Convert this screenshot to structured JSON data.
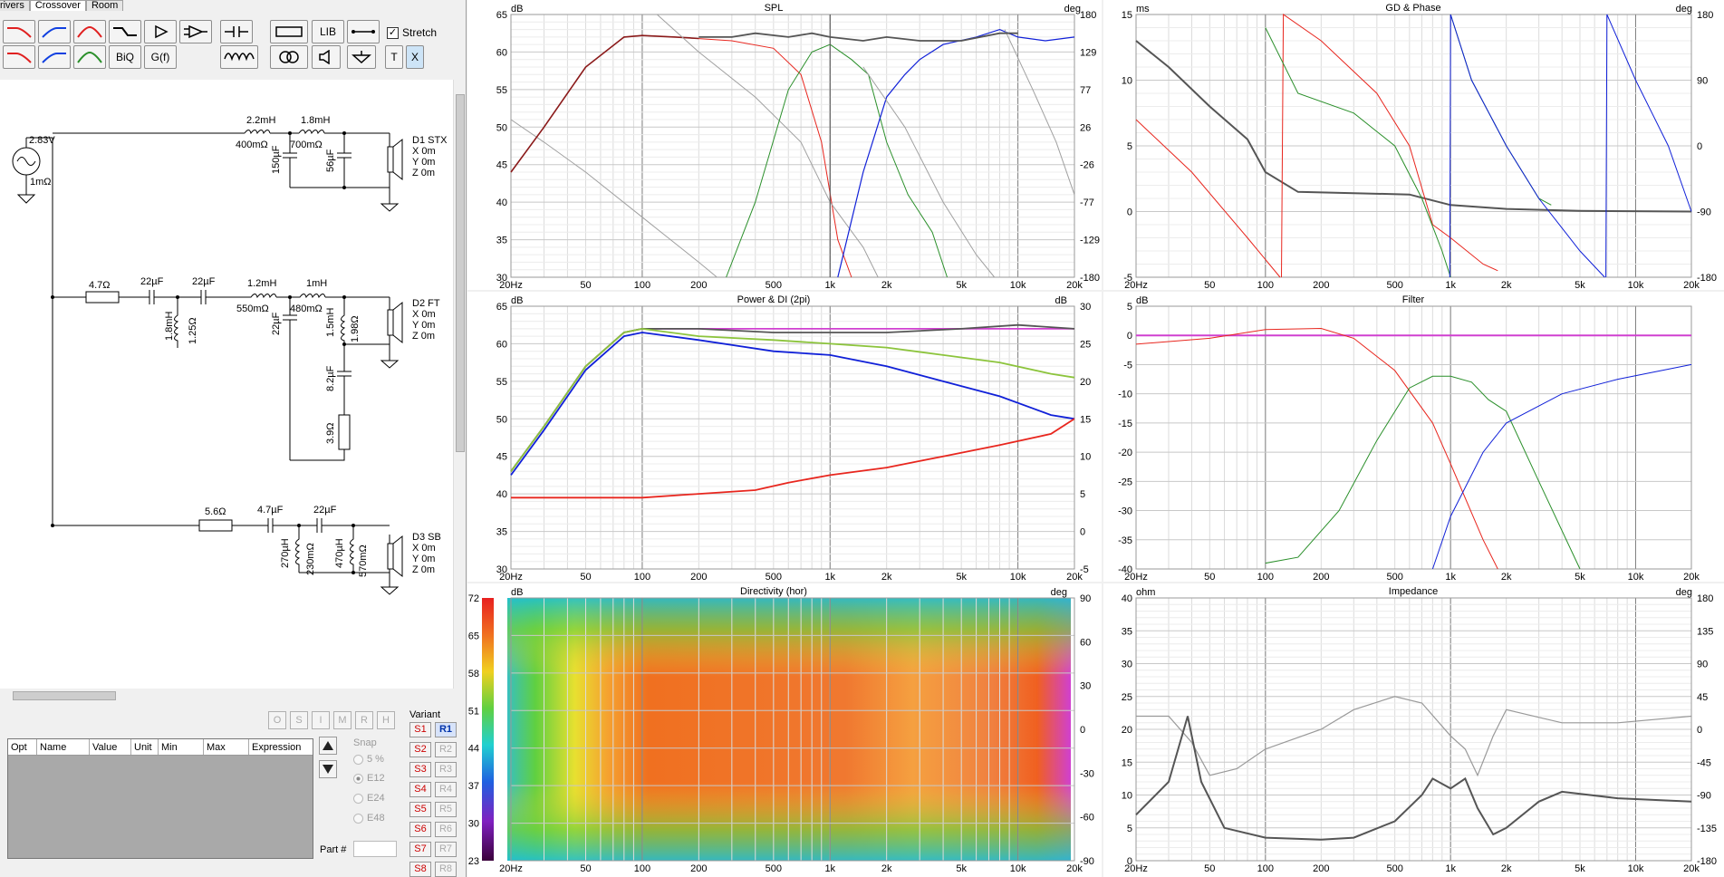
{
  "tabs": [
    {
      "label": "Drivers"
    },
    {
      "label": "Crossover"
    },
    {
      "label": "Room"
    }
  ],
  "toolbar": {
    "lib_label": "LIB",
    "biq_label": "BiQ",
    "gf_label": "G(f)",
    "stretch_label": "Stretch",
    "stretch_checked": "✓",
    "t_label": "T",
    "x_label": "X"
  },
  "schematic": {
    "source": {
      "voltage": "2.83V",
      "resistance": "1mΩ"
    },
    "parts": {
      "l1": "2.2mH",
      "r1": "400mΩ",
      "l2": "1.8mH",
      "r2": "700mΩ",
      "c1": "150µF",
      "c2": "56µF",
      "ft_r": "4.7Ω",
      "ft_c1": "22µF",
      "ft_c2": "22µF",
      "ft_l1": "1.8mH",
      "ft_r1": "1.25Ω",
      "ft_l2": "1.2mH",
      "ft_r2": "550mΩ",
      "ft_l3": "1mH",
      "ft_r3": "480mΩ",
      "ft_c3": "22µF",
      "ft_l4": "1.5mH",
      "ft_r4": "1.98Ω",
      "ft_c4": "8.2µF",
      "ft_r5": "3.9Ω",
      "sb_r": "5.6Ω",
      "sb_c1": "4.7µF",
      "sb_c2": "22µF",
      "sb_l1": "270µH",
      "sb_r1": "230mΩ",
      "sb_l2": "470µH",
      "sb_r2": "570mΩ"
    },
    "drivers": [
      {
        "name": "D1 STX",
        "x": "X 0m",
        "y": "Y 0m",
        "z": "Z 0m"
      },
      {
        "name": "D2 FT",
        "x": "X 0m",
        "y": "Y 0m",
        "z": "Z 0m"
      },
      {
        "name": "D3 SB",
        "x": "X 0m",
        "y": "Y 0m",
        "z": "Z 0m"
      }
    ]
  },
  "optbuttons": [
    "O",
    "S",
    "I",
    "M",
    "R",
    "H"
  ],
  "param_grid": {
    "columns": [
      "Opt",
      "Name",
      "Value",
      "Unit",
      "Min",
      "Max",
      "Expression"
    ]
  },
  "snap": {
    "label": "Snap",
    "options": [
      "5 %",
      "E12",
      "E24",
      "E48"
    ],
    "selected": "E12"
  },
  "variant": {
    "label": "Variant",
    "s": [
      "S1",
      "S2",
      "S3",
      "S4",
      "S5",
      "S6",
      "S7",
      "S8"
    ],
    "r": [
      "R1",
      "R2",
      "R3",
      "R4",
      "R5",
      "R6",
      "R7",
      "R8"
    ],
    "selected": "R1"
  },
  "part_label": "Part #",
  "graphs": {
    "freq_ticks": [
      "20Hz",
      "50",
      "100",
      "200",
      "500",
      "1k",
      "2k",
      "5k",
      "10k",
      "20k"
    ],
    "spl": {
      "title": "SPL",
      "left_unit": "dB",
      "right_unit": "deg",
      "left_ticks": [
        "65",
        "60",
        "55",
        "50",
        "45",
        "40",
        "35",
        "30"
      ],
      "right_ticks": [
        "180",
        "129",
        "77",
        "26",
        "-26",
        "-77",
        "-129",
        "-180"
      ]
    },
    "gd": {
      "title": "GD & Phase",
      "left_unit": "ms",
      "right_unit": "deg",
      "left_ticks": [
        "15",
        "10",
        "5",
        "0",
        "-5"
      ],
      "right_ticks": [
        "180",
        "90",
        "0",
        "-90",
        "-180"
      ]
    },
    "power": {
      "title": "Power & DI (2pi)",
      "left_unit": "dB",
      "right_unit": "dB",
      "left_ticks": [
        "65",
        "60",
        "55",
        "50",
        "45",
        "40",
        "35",
        "30"
      ],
      "right_ticks": [
        "30",
        "25",
        "20",
        "15",
        "10",
        "5",
        "0",
        "-5"
      ]
    },
    "filter": {
      "title": "Filter",
      "left_unit": "dB",
      "left_ticks": [
        "5",
        "0",
        "-5",
        "-10",
        "-15",
        "-20",
        "-25",
        "-30",
        "-35",
        "-40"
      ]
    },
    "directivity": {
      "title": "Directivity (hor)",
      "left_unit": "dB",
      "right_unit": "deg",
      "left_ticks": [
        "72",
        "65",
        "58",
        "51",
        "44",
        "37",
        "30",
        "23"
      ],
      "right_ticks": [
        "90",
        "60",
        "30",
        "0",
        "-30",
        "-60",
        "-90"
      ]
    },
    "impedance": {
      "title": "Impedance",
      "left_unit": "ohm",
      "right_unit": "deg",
      "left_ticks": [
        "40",
        "35",
        "30",
        "25",
        "20",
        "15",
        "10",
        "5",
        "0"
      ],
      "right_ticks": [
        "180",
        "135",
        "90",
        "45",
        "0",
        "-45",
        "-90",
        "-135",
        "-180"
      ]
    }
  },
  "colors": {
    "red": "#e8261e",
    "green": "#2a8f2a",
    "blue": "#1020d8",
    "gray": "#555555",
    "magenta": "#d040d0",
    "lime": "#8cc43c"
  }
}
